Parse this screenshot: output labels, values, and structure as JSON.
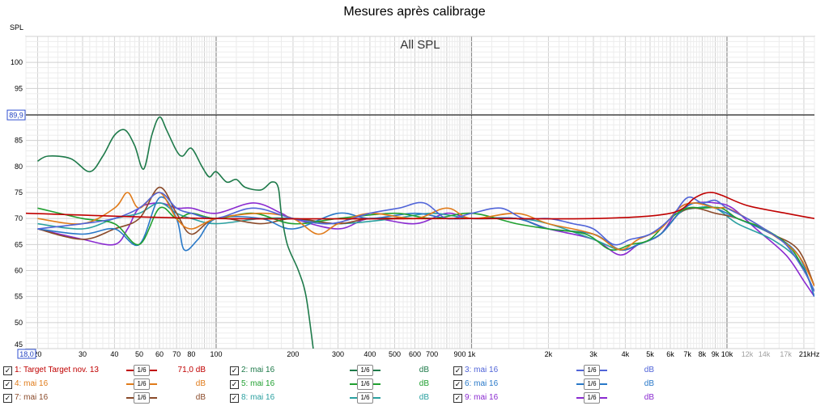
{
  "window": {
    "title": "Mesures après calibrage"
  },
  "chart_data": {
    "type": "line",
    "title": "Mesures après calibrage",
    "subtitle": "All SPL",
    "ylabel": "SPL",
    "x_scale": "log",
    "xlim": [
      18,
      22000
    ],
    "ylim": [
      45,
      105
    ],
    "grid": true,
    "x_ticks": [
      {
        "v": 20,
        "label": "20"
      },
      {
        "v": 30,
        "label": "30"
      },
      {
        "v": 40,
        "label": "40"
      },
      {
        "v": 50,
        "label": "50"
      },
      {
        "v": 60,
        "label": "60"
      },
      {
        "v": 70,
        "label": "70"
      },
      {
        "v": 80,
        "label": "80"
      },
      {
        "v": 100,
        "label": "100"
      },
      {
        "v": 200,
        "label": "200"
      },
      {
        "v": 300,
        "label": "300"
      },
      {
        "v": 400,
        "label": "400"
      },
      {
        "v": 500,
        "label": "500"
      },
      {
        "v": 600,
        "label": "600"
      },
      {
        "v": 700,
        "label": "700"
      },
      {
        "v": 900,
        "label": "900"
      },
      {
        "v": 1000,
        "label": "1k"
      },
      {
        "v": 2000,
        "label": "2k"
      },
      {
        "v": 3000,
        "label": "3k"
      },
      {
        "v": 4000,
        "label": "4k"
      },
      {
        "v": 5000,
        "label": "5k"
      },
      {
        "v": 6000,
        "label": "6k"
      },
      {
        "v": 7000,
        "label": "7k"
      },
      {
        "v": 8000,
        "label": "8k"
      },
      {
        "v": 9000,
        "label": "9k"
      },
      {
        "v": 10000,
        "label": "10k"
      },
      {
        "v": 12000,
        "label": "12k",
        "faded": true
      },
      {
        "v": 14000,
        "label": "14k",
        "faded": true
      },
      {
        "v": 17000,
        "label": "17k",
        "faded": true
      },
      {
        "v": 21000,
        "label": "21kHz"
      }
    ],
    "y_ticks": [
      50,
      55,
      60,
      65,
      70,
      75,
      80,
      85,
      95,
      100
    ],
    "y_bottom_label": "45",
    "cursor": {
      "y": 89.9,
      "y_label": "89,9",
      "x_label": "18,0"
    },
    "series": [
      {
        "name": "1: Target Target nov. 13",
        "color": "#c00000",
        "points": [
          [
            18,
            71
          ],
          [
            100,
            70
          ],
          [
            1000,
            70
          ],
          [
            3000,
            70
          ],
          [
            6000,
            71
          ],
          [
            7500,
            74
          ],
          [
            8500,
            75
          ],
          [
            9500,
            74.5
          ],
          [
            12000,
            72.5
          ],
          [
            17000,
            71
          ],
          [
            22000,
            70
          ]
        ]
      },
      {
        "name": "2: mai 16",
        "color": "#1e7a4a",
        "points": [
          [
            20,
            81
          ],
          [
            22,
            82
          ],
          [
            27,
            81.5
          ],
          [
            32,
            79
          ],
          [
            36,
            82
          ],
          [
            40,
            86
          ],
          [
            44,
            87
          ],
          [
            48,
            84
          ],
          [
            52,
            79.5
          ],
          [
            56,
            86
          ],
          [
            60,
            89.5
          ],
          [
            64,
            87
          ],
          [
            70,
            83
          ],
          [
            74,
            82
          ],
          [
            80,
            83.5
          ],
          [
            88,
            80
          ],
          [
            94,
            78
          ],
          [
            100,
            79
          ],
          [
            110,
            77
          ],
          [
            120,
            77.5
          ],
          [
            130,
            76
          ],
          [
            150,
            75.5
          ],
          [
            165,
            77
          ],
          [
            175,
            76
          ],
          [
            180,
            71
          ],
          [
            190,
            65
          ],
          [
            210,
            60
          ],
          [
            225,
            55
          ],
          [
            240,
            45
          ]
        ]
      },
      {
        "name": "3: mai 16",
        "color": "#5064d8",
        "points": [
          [
            20,
            68
          ],
          [
            30,
            69
          ],
          [
            40,
            70
          ],
          [
            50,
            72
          ],
          [
            60,
            75
          ],
          [
            70,
            72
          ],
          [
            80,
            71
          ],
          [
            100,
            70
          ],
          [
            140,
            72
          ],
          [
            200,
            70
          ],
          [
            280,
            69
          ],
          [
            400,
            71
          ],
          [
            520,
            72
          ],
          [
            650,
            73
          ],
          [
            800,
            70
          ],
          [
            1000,
            71
          ],
          [
            1300,
            72
          ],
          [
            1600,
            70
          ],
          [
            2000,
            70
          ],
          [
            2500,
            69
          ],
          [
            3000,
            68
          ],
          [
            3600,
            65
          ],
          [
            4200,
            66
          ],
          [
            5000,
            67
          ],
          [
            6000,
            70
          ],
          [
            7000,
            74
          ],
          [
            8000,
            73
          ],
          [
            9000,
            73.5
          ],
          [
            10000,
            72
          ],
          [
            12000,
            70
          ],
          [
            14000,
            68
          ],
          [
            17000,
            65
          ],
          [
            20000,
            60
          ],
          [
            22000,
            56
          ]
        ]
      },
      {
        "name": "4: mai 16",
        "color": "#e07b1a",
        "points": [
          [
            20,
            70
          ],
          [
            30,
            69
          ],
          [
            40,
            72
          ],
          [
            45,
            75
          ],
          [
            50,
            72
          ],
          [
            60,
            75
          ],
          [
            70,
            70
          ],
          [
            80,
            68
          ],
          [
            100,
            70
          ],
          [
            150,
            71
          ],
          [
            200,
            70
          ],
          [
            250,
            67
          ],
          [
            300,
            69
          ],
          [
            400,
            71
          ],
          [
            600,
            70
          ],
          [
            800,
            72
          ],
          [
            1000,
            70
          ],
          [
            1500,
            71
          ],
          [
            2000,
            69
          ],
          [
            3000,
            67
          ],
          [
            3800,
            64
          ],
          [
            4500,
            66
          ],
          [
            5500,
            68
          ],
          [
            6500,
            72
          ],
          [
            7500,
            73
          ],
          [
            9000,
            72
          ],
          [
            10000,
            72
          ],
          [
            12000,
            70
          ],
          [
            15000,
            67
          ],
          [
            19000,
            63
          ],
          [
            22000,
            57
          ]
        ]
      },
      {
        "name": "5: mai 16",
        "color": "#20a030",
        "points": [
          [
            20,
            72
          ],
          [
            30,
            70
          ],
          [
            40,
            69
          ],
          [
            50,
            65
          ],
          [
            60,
            72
          ],
          [
            70,
            70
          ],
          [
            80,
            71
          ],
          [
            100,
            70
          ],
          [
            140,
            71
          ],
          [
            200,
            69
          ],
          [
            300,
            70
          ],
          [
            500,
            71
          ],
          [
            700,
            70
          ],
          [
            1000,
            71
          ],
          [
            1500,
            69
          ],
          [
            2000,
            68
          ],
          [
            2800,
            67
          ],
          [
            3500,
            64
          ],
          [
            4200,
            65
          ],
          [
            5000,
            66
          ],
          [
            6000,
            70
          ],
          [
            7000,
            72
          ],
          [
            8000,
            72
          ],
          [
            9500,
            72
          ],
          [
            11000,
            70
          ],
          [
            14000,
            68
          ],
          [
            18000,
            64
          ],
          [
            22000,
            56
          ]
        ]
      },
      {
        "name": "6: mai 16",
        "color": "#2878c8",
        "points": [
          [
            20,
            68
          ],
          [
            30,
            67
          ],
          [
            40,
            68
          ],
          [
            50,
            65
          ],
          [
            60,
            74
          ],
          [
            70,
            70
          ],
          [
            75,
            64
          ],
          [
            85,
            66
          ],
          [
            100,
            70
          ],
          [
            150,
            70
          ],
          [
            200,
            68
          ],
          [
            300,
            71
          ],
          [
            400,
            70
          ],
          [
            600,
            71
          ],
          [
            800,
            70
          ],
          [
            1000,
            70
          ],
          [
            1500,
            70
          ],
          [
            2000,
            68
          ],
          [
            3000,
            67
          ],
          [
            3800,
            64
          ],
          [
            4500,
            65
          ],
          [
            5500,
            67
          ],
          [
            6500,
            71
          ],
          [
            7500,
            73
          ],
          [
            9000,
            72
          ],
          [
            11000,
            70
          ],
          [
            15000,
            67
          ],
          [
            19000,
            63
          ],
          [
            22000,
            55
          ]
        ]
      },
      {
        "name": "7: mai 16",
        "color": "#8a4a2a",
        "points": [
          [
            20,
            68
          ],
          [
            30,
            66
          ],
          [
            40,
            68
          ],
          [
            50,
            70
          ],
          [
            60,
            76
          ],
          [
            70,
            71
          ],
          [
            80,
            67
          ],
          [
            100,
            70
          ],
          [
            150,
            69
          ],
          [
            200,
            70
          ],
          [
            300,
            69
          ],
          [
            400,
            70
          ],
          [
            600,
            70
          ],
          [
            1000,
            70
          ],
          [
            1500,
            70
          ],
          [
            2000,
            68
          ],
          [
            3000,
            67
          ],
          [
            3800,
            64
          ],
          [
            4500,
            65
          ],
          [
            5500,
            67
          ],
          [
            6500,
            71
          ],
          [
            7500,
            72
          ],
          [
            9000,
            71
          ],
          [
            11000,
            70
          ],
          [
            15000,
            67
          ],
          [
            19000,
            64
          ],
          [
            22000,
            57
          ]
        ]
      },
      {
        "name": "8: mai 16",
        "color": "#2aa0a0",
        "points": [
          [
            20,
            69
          ],
          [
            30,
            68
          ],
          [
            40,
            70
          ],
          [
            50,
            71
          ],
          [
            60,
            73
          ],
          [
            70,
            71
          ],
          [
            80,
            70
          ],
          [
            100,
            69
          ],
          [
            150,
            70
          ],
          [
            200,
            70
          ],
          [
            300,
            69
          ],
          [
            500,
            70
          ],
          [
            700,
            71
          ],
          [
            1000,
            70
          ],
          [
            1500,
            70
          ],
          [
            2000,
            69
          ],
          [
            3000,
            66
          ],
          [
            3800,
            64
          ],
          [
            4500,
            65
          ],
          [
            5500,
            67
          ],
          [
            6500,
            71
          ],
          [
            7500,
            72
          ],
          [
            9000,
            72
          ],
          [
            11000,
            69
          ],
          [
            15000,
            66
          ],
          [
            19000,
            62
          ],
          [
            22000,
            56
          ]
        ]
      },
      {
        "name": "9: mai 16",
        "color": "#8a2ad0",
        "points": [
          [
            20,
            68
          ],
          [
            30,
            66
          ],
          [
            40,
            65
          ],
          [
            45,
            68
          ],
          [
            50,
            72
          ],
          [
            60,
            73
          ],
          [
            70,
            72
          ],
          [
            80,
            72
          ],
          [
            100,
            71
          ],
          [
            140,
            73
          ],
          [
            180,
            71
          ],
          [
            200,
            70
          ],
          [
            300,
            68
          ],
          [
            400,
            70
          ],
          [
            600,
            69
          ],
          [
            800,
            71
          ],
          [
            1000,
            70
          ],
          [
            1500,
            70
          ],
          [
            2000,
            68
          ],
          [
            3000,
            66
          ],
          [
            3800,
            63
          ],
          [
            4500,
            65
          ],
          [
            5500,
            67
          ],
          [
            6500,
            72
          ],
          [
            7500,
            73
          ],
          [
            9000,
            73
          ],
          [
            10500,
            72
          ],
          [
            13000,
            68
          ],
          [
            17000,
            63
          ],
          [
            20000,
            58
          ],
          [
            22000,
            55
          ]
        ]
      }
    ]
  },
  "legend": {
    "smoothing": "1/6",
    "rows": [
      [
        {
          "label": "1: Target Target nov. 13",
          "db": "71,0 dB",
          "color": "#c00000"
        },
        {
          "label": "2: mai 16",
          "db": "dB",
          "color": "#1e7a4a"
        },
        {
          "label": "3: mai 16",
          "db": "dB",
          "color": "#5064d8"
        }
      ],
      [
        {
          "label": "4: mai 16",
          "db": "dB",
          "color": "#e07b1a"
        },
        {
          "label": "5: mai 16",
          "db": "dB",
          "color": "#20a030"
        },
        {
          "label": "6: mai 16",
          "db": "dB",
          "color": "#2878c8"
        }
      ],
      [
        {
          "label": "7: mai 16",
          "db": "dB",
          "color": "#8a4a2a"
        },
        {
          "label": "8: mai 16",
          "db": "dB",
          "color": "#2aa0a0"
        },
        {
          "label": "9: mai 16",
          "db": "dB",
          "color": "#8a2ad0"
        }
      ]
    ]
  }
}
